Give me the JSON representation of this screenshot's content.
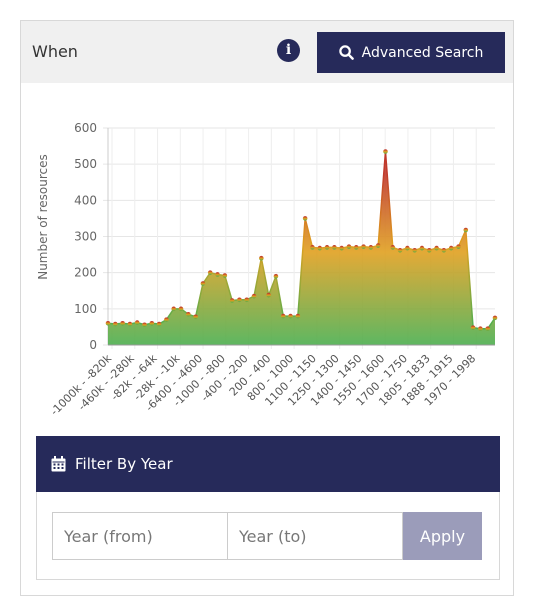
{
  "header": {
    "title": "When",
    "info_icon": "info-icon",
    "advanced_search_label": "Advanced Search",
    "advanced_search_icon": "search-icon"
  },
  "chart_data": {
    "type": "area",
    "title": "",
    "ylabel": "Number of resources",
    "xlabel": "",
    "ylim": [
      0,
      600
    ],
    "yticks": [
      0,
      100,
      200,
      300,
      400,
      500,
      600
    ],
    "grid": true,
    "gradient_colors": [
      "#c0392b",
      "#e0a020",
      "#4caf50"
    ],
    "tick_labels": [
      "-1000k - -820k",
      "-460k - -280k",
      "-82k - -64k",
      "-28k - -10k",
      "-6400 - -4600",
      "-1000 - -800",
      "-400 - -200",
      "200 - 400",
      "800 - 1000",
      "1100 - 1150",
      "1250 - 1300",
      "1400 - 1450",
      "1550 - 1600",
      "1700 - 1750",
      "1805 - 1833",
      "1888 - 1915",
      "1970 - 1998"
    ],
    "values": [
      60,
      58,
      60,
      58,
      62,
      56,
      60,
      58,
      70,
      100,
      100,
      85,
      78,
      170,
      200,
      195,
      192,
      123,
      125,
      125,
      135,
      240,
      138,
      190,
      80,
      80,
      80,
      350,
      270,
      268,
      270,
      270,
      268,
      272,
      270,
      272,
      270,
      275,
      535,
      270,
      262,
      268,
      262,
      268,
      262,
      268,
      262,
      268,
      272,
      318,
      48,
      45,
      45,
      75
    ]
  },
  "filter": {
    "icon": "calendar-icon",
    "title": "Filter By Year",
    "from_placeholder": "Year (from)",
    "to_placeholder": "Year (to)",
    "apply_label": "Apply"
  }
}
